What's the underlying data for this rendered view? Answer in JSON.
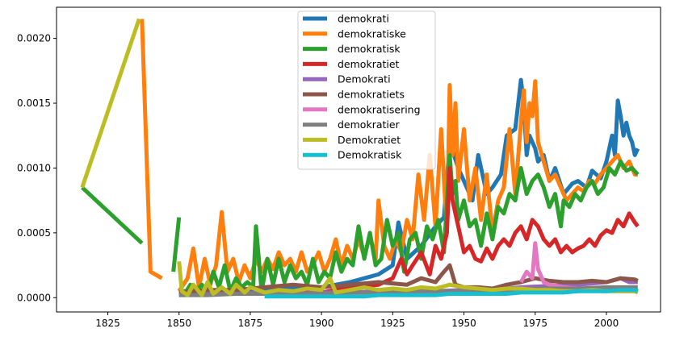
{
  "chart_data": {
    "type": "line",
    "title": "",
    "xlabel": "",
    "ylabel": "",
    "xlim": [
      1807,
      2019
    ],
    "ylim": [
      -0.00011,
      0.00224
    ],
    "xticks": [
      1825,
      1850,
      1875,
      1900,
      1925,
      1950,
      1975,
      2000
    ],
    "xtick_labels": [
      "1825",
      "1850",
      "1875",
      "1900",
      "1925",
      "1950",
      "1975",
      "2000"
    ],
    "yticks": [
      0.0,
      0.0005,
      0.001,
      0.0015,
      0.002
    ],
    "ytick_labels": [
      "0.0000",
      "0.0005",
      "0.0010",
      "0.0015",
      "0.0020"
    ],
    "grid": false,
    "legend_position": "upper center",
    "series": [
      {
        "name": "demokrati",
        "color": "#1f77b4",
        "x": [
          1850,
          1860,
          1870,
          1880,
          1890,
          1900,
          1905,
          1910,
          1915,
          1920,
          1925,
          1927,
          1930,
          1935,
          1940,
          1943,
          1945,
          1948,
          1950,
          1953,
          1955,
          1958,
          1960,
          1963,
          1965,
          1968,
          1970,
          1971,
          1972,
          1973,
          1975,
          1976,
          1978,
          1980,
          1982,
          1985,
          1988,
          1990,
          1993,
          1995,
          1998,
          2000,
          2002,
          2003,
          2004,
          2005,
          2006,
          2007,
          2008,
          2009,
          2010,
          2011
        ],
        "y": [
          5e-05,
          5e-05,
          5e-05,
          6e-05,
          7e-05,
          8e-05,
          0.0001,
          0.00012,
          0.00015,
          0.00018,
          0.00025,
          0.00058,
          0.0003,
          0.0004,
          0.00055,
          0.00062,
          0.0012,
          0.001,
          0.0009,
          0.00075,
          0.0011,
          0.0008,
          0.00085,
          0.00095,
          0.00125,
          0.0013,
          0.00168,
          0.0015,
          0.0011,
          0.00125,
          0.00115,
          0.00105,
          0.0011,
          0.0009,
          0.001,
          0.0008,
          0.00088,
          0.0009,
          0.00085,
          0.00098,
          0.00092,
          0.00105,
          0.00125,
          0.0011,
          0.00152,
          0.0014,
          0.00125,
          0.00135,
          0.00125,
          0.0012,
          0.0011,
          0.00115
        ]
      },
      {
        "name": "demokratiske",
        "color": "#ff7f0e",
        "x": [
          1837,
          1840,
          1844,
          null,
          1850,
          1853,
          1855,
          1857,
          1859,
          1861,
          1863,
          1865,
          1867,
          1869,
          1871,
          1873,
          1875,
          1877,
          1879,
          1881,
          1883,
          1885,
          1887,
          1889,
          1891,
          1893,
          1895,
          1897,
          1899,
          1901,
          1903,
          1905,
          1907,
          1909,
          1911,
          1913,
          1915,
          1917,
          1919,
          1920,
          1922,
          1924,
          1926,
          1928,
          1930,
          1932,
          1934,
          1936,
          1938,
          1940,
          1942,
          1944,
          1945,
          1946,
          1947,
          1948,
          1950,
          1952,
          1954,
          1956,
          1958,
          1960,
          1962,
          1964,
          1966,
          1968,
          1970,
          1971,
          1972,
          1973,
          1974,
          1975,
          1976,
          1978,
          1980,
          1982,
          1984,
          1986,
          1988,
          1990,
          1992,
          1994,
          1996,
          1998,
          2000,
          2002,
          2004,
          2006,
          2008,
          2010,
          2011
        ],
        "y": [
          0.00215,
          0.0002,
          0.00015,
          null,
          5e-05,
          0.00015,
          0.00038,
          8e-05,
          0.0003,
          0.0001,
          0.00025,
          0.00066,
          0.0002,
          0.0003,
          0.00012,
          0.00025,
          0.00015,
          0.0003,
          0.0002,
          0.0003,
          0.00022,
          0.00035,
          0.00025,
          0.0003,
          0.0002,
          0.00035,
          0.0002,
          0.00025,
          0.00035,
          0.0002,
          0.0003,
          0.00045,
          0.00025,
          0.0004,
          0.0003,
          0.00045,
          0.00032,
          0.00048,
          0.0003,
          0.00075,
          0.0004,
          0.0003,
          0.00045,
          0.00035,
          0.0006,
          0.00045,
          0.00095,
          0.0006,
          0.0011,
          0.00055,
          0.0013,
          0.0005,
          0.00164,
          0.0011,
          0.0015,
          0.0009,
          0.0013,
          0.00075,
          0.001,
          0.0006,
          0.00095,
          0.0005,
          0.00075,
          0.00085,
          0.0013,
          0.0008,
          0.00135,
          0.0016,
          0.0012,
          0.0015,
          0.0014,
          0.00167,
          0.0012,
          0.00105,
          0.0009,
          0.00095,
          0.00085,
          0.00075,
          0.0008,
          0.00085,
          0.00082,
          0.0009,
          0.00088,
          0.00095,
          0.001,
          0.00105,
          0.0011,
          0.001,
          0.00105,
          0.00095,
          0.00095
        ]
      },
      {
        "name": "demokratisk",
        "color": "#2ca02c",
        "x": [
          1816,
          1837,
          null,
          1848,
          1850,
          null,
          1852,
          1854,
          1856,
          1858,
          1860,
          1862,
          1864,
          1866,
          1868,
          1870,
          1872,
          1874,
          1876,
          1877,
          1879,
          1881,
          1883,
          1885,
          1887,
          1889,
          1891,
          1893,
          1895,
          1897,
          1899,
          1901,
          1903,
          1905,
          1907,
          1909,
          1911,
          1913,
          1915,
          1917,
          1919,
          1921,
          1923,
          1925,
          1927,
          1929,
          1931,
          1933,
          1935,
          1937,
          1939,
          1941,
          1943,
          1945,
          1946,
          1947,
          1948,
          1950,
          1952,
          1954,
          1956,
          1958,
          1960,
          1962,
          1964,
          1966,
          1968,
          1970,
          1972,
          1974,
          1976,
          1978,
          1980,
          1982,
          1984,
          1985,
          1987,
          1989,
          1991,
          1993,
          1995,
          1997,
          1999,
          2001,
          2003,
          2005,
          2007,
          2009,
          2011
        ],
        "y": [
          0.00085,
          0.00042,
          null,
          0.0002,
          0.00062,
          null,
          3e-05,
          0.0001,
          5e-05,
          0.0001,
          4e-05,
          0.0002,
          8e-05,
          0.00025,
          5e-05,
          0.00015,
          8e-05,
          0.00012,
          8e-05,
          0.00055,
          5e-05,
          0.0003,
          0.0001,
          0.0003,
          0.00012,
          0.00025,
          0.00015,
          0.0002,
          0.0001,
          0.0003,
          0.00012,
          0.0002,
          0.00015,
          0.00035,
          0.0002,
          0.0003,
          0.00025,
          0.00055,
          0.0003,
          0.0005,
          0.00025,
          0.0003,
          0.0006,
          0.0004,
          0.0005,
          0.0002,
          0.00045,
          0.0005,
          0.0003,
          0.00055,
          0.00045,
          0.0006,
          0.00035,
          0.0011,
          0.0008,
          0.0009,
          0.0006,
          0.00075,
          0.00055,
          0.0006,
          0.0004,
          0.00065,
          0.00045,
          0.0007,
          0.00065,
          0.0008,
          0.00075,
          0.001,
          0.0008,
          0.0009,
          0.00095,
          0.00085,
          0.0007,
          0.0008,
          0.00055,
          0.00075,
          0.0007,
          0.0008,
          0.00075,
          0.00085,
          0.0009,
          0.0008,
          0.00085,
          0.001,
          0.00095,
          0.00105,
          0.00098,
          0.001,
          0.00095
        ]
      },
      {
        "name": "demokratiet",
        "color": "#d62728",
        "x": [
          1850,
          1860,
          1870,
          1880,
          1890,
          1900,
          1910,
          1920,
          1925,
          1928,
          1930,
          1932,
          1935,
          1938,
          1940,
          1942,
          1944,
          1945,
          1946,
          1948,
          1950,
          1952,
          1954,
          1956,
          1958,
          1960,
          1962,
          1964,
          1966,
          1968,
          1970,
          1972,
          1974,
          1976,
          1978,
          1980,
          1982,
          1984,
          1986,
          1988,
          1990,
          1992,
          1994,
          1996,
          1998,
          2000,
          2002,
          2004,
          2006,
          2008,
          2010,
          2011
        ],
        "y": [
          2e-05,
          3e-05,
          3e-05,
          3e-05,
          4e-05,
          4e-05,
          8e-05,
          0.0001,
          0.00015,
          0.0003,
          0.00018,
          0.00025,
          0.00035,
          0.00018,
          0.0004,
          0.0003,
          0.0005,
          0.001,
          0.00075,
          0.00055,
          0.00035,
          0.0004,
          0.0003,
          0.00028,
          0.00038,
          0.0003,
          0.0004,
          0.00045,
          0.0004,
          0.0005,
          0.00055,
          0.00045,
          0.0006,
          0.00055,
          0.00045,
          0.0004,
          0.00045,
          0.00035,
          0.0004,
          0.00035,
          0.00038,
          0.0004,
          0.00045,
          0.0004,
          0.00048,
          0.00052,
          0.0005,
          0.0006,
          0.00055,
          0.00065,
          0.00058,
          0.00055
        ]
      },
      {
        "name": "Demokrati",
        "color": "#9467bd",
        "x": [
          1852,
          1860,
          1870,
          1880,
          1890,
          1900,
          1910,
          1920,
          1930,
          1940,
          1950,
          1960,
          1970,
          1980,
          1990,
          2000,
          2005,
          2008,
          2011
        ],
        "y": [
          3e-05,
          4e-05,
          3e-05,
          4e-05,
          3e-05,
          4e-05,
          4e-05,
          5e-05,
          5e-05,
          5e-05,
          6e-05,
          6e-05,
          8e-05,
          9e-05,
          0.0001,
          0.00012,
          0.00015,
          0.00012,
          0.00012
        ]
      },
      {
        "name": "demokratiets",
        "color": "#8c564b",
        "x": [
          1850,
          1860,
          1870,
          1880,
          1890,
          1900,
          1910,
          1920,
          1930,
          1935,
          1940,
          1943,
          1945,
          1947,
          1950,
          1955,
          1960,
          1965,
          1970,
          1975,
          1980,
          1985,
          1990,
          1995,
          2000,
          2005,
          2010,
          2011
        ],
        "y": [
          4e-05,
          6e-05,
          6e-05,
          8e-05,
          0.0001,
          8e-05,
          0.0001,
          0.00012,
          0.0001,
          0.00015,
          0.00012,
          0.0002,
          0.00025,
          0.0001,
          8e-05,
          8e-05,
          7e-05,
          0.0001,
          0.00012,
          0.00015,
          0.00013,
          0.00012,
          0.00012,
          0.00013,
          0.00012,
          0.00015,
          0.00014,
          0.00013
        ]
      },
      {
        "name": "demokratisering",
        "color": "#e377c2",
        "x": [
          1970,
          1972,
          1974,
          1975,
          1976,
          1978,
          1980,
          1985,
          1990,
          1995,
          2000,
          2005,
          2010,
          2011
        ],
        "y": [
          0.00012,
          0.0002,
          0.00015,
          0.00042,
          0.00022,
          0.00012,
          0.0001,
          8e-05,
          7e-05,
          6e-05,
          6e-05,
          5e-05,
          5e-05,
          5e-05
        ]
      },
      {
        "name": "demokratier",
        "color": "#7f7f7f",
        "x": [
          1850,
          1860,
          1870,
          1880,
          1890,
          1900,
          1910,
          1920,
          1930,
          1940,
          1950,
          1960,
          1970,
          1980,
          1990,
          2000,
          2010,
          2011
        ],
        "y": [
          2e-05,
          2e-05,
          3e-05,
          3e-05,
          3e-05,
          3e-05,
          4e-05,
          4e-05,
          5e-05,
          5e-05,
          5e-05,
          6e-05,
          6e-05,
          7e-05,
          7e-05,
          8e-05,
          8e-05,
          8e-05
        ]
      },
      {
        "name": "Demokratiet",
        "color": "#bcbd22",
        "x": [
          1816,
          1836,
          null,
          1850,
          1851,
          1853,
          1855,
          1858,
          1860,
          1862,
          1865,
          1868,
          1870,
          1873,
          1875,
          1880,
          1885,
          1890,
          1895,
          1900,
          1903,
          1905,
          1910,
          1915,
          1920,
          1925,
          1930,
          1935,
          1940,
          1945,
          1950,
          1955,
          1960,
          1965,
          1970,
          1975,
          1980,
          1985,
          1990,
          1995,
          2000,
          2005,
          2010,
          2011
        ],
        "y": [
          0.00085,
          0.00215,
          null,
          0.00028,
          5e-05,
          2e-05,
          0.0001,
          2e-05,
          0.00012,
          3e-05,
          8e-05,
          3e-05,
          0.0001,
          4e-05,
          8e-05,
          4e-05,
          6e-05,
          5e-05,
          7e-05,
          6e-05,
          0.00015,
          4e-05,
          6e-05,
          8e-05,
          6e-05,
          7e-05,
          6e-05,
          8e-05,
          7e-05,
          0.0001,
          8e-05,
          7e-05,
          6e-05,
          7e-05,
          7e-05,
          6e-05,
          6e-05,
          5e-05,
          5e-05,
          6e-05,
          5e-05,
          5e-05,
          5e-05,
          4e-05
        ]
      },
      {
        "name": "Demokratisk",
        "color": "#17becf",
        "x": [
          1880,
          1890,
          1900,
          1905,
          1910,
          1915,
          1920,
          1925,
          1930,
          1940,
          1945,
          1950,
          1955,
          1960,
          1965,
          1970,
          1975,
          1980,
          1985,
          1990,
          1995,
          2000,
          2005,
          2010,
          2011
        ],
        "y": [
          1e-05,
          1e-05,
          1e-05,
          1e-05,
          1e-05,
          1e-05,
          2e-05,
          2e-05,
          2e-05,
          2e-05,
          3e-05,
          3e-05,
          3e-05,
          3e-05,
          3e-05,
          4e-05,
          4e-05,
          4e-05,
          4e-05,
          5e-05,
          5e-05,
          5e-05,
          6e-05,
          6e-05,
          5e-05
        ]
      }
    ]
  }
}
